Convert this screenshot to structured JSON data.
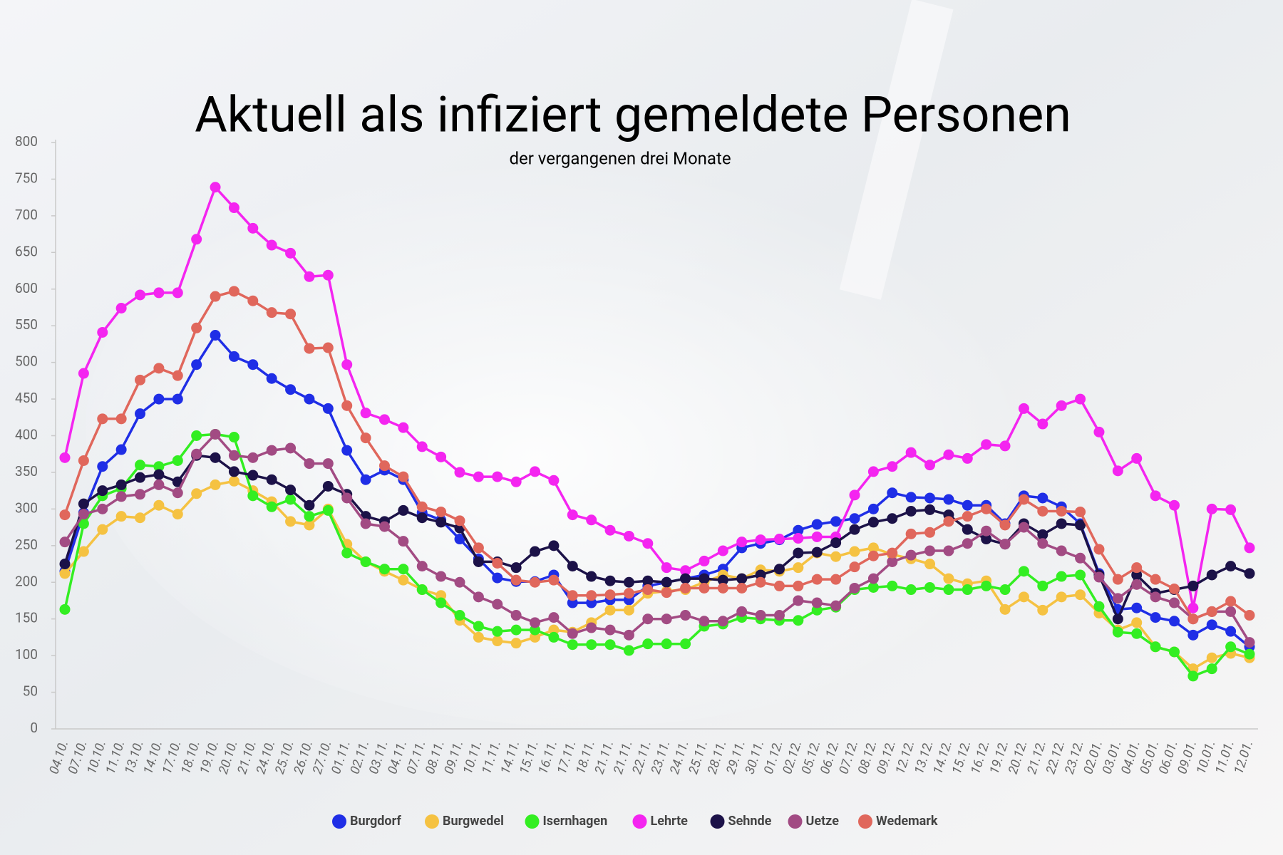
{
  "chart_data": {
    "type": "line",
    "title": "Aktuell als infiziert gemeldete Personen",
    "subtitle": "der vergangenen drei Monate",
    "categories": [
      "04.10.",
      "07.10.",
      "10.10.",
      "11.10.",
      "13.10.",
      "14.10.",
      "17.10.",
      "18.10.",
      "19.10.",
      "20.10.",
      "21.10.",
      "24.10.",
      "25.10.",
      "26.10.",
      "27.10.",
      "01.11.",
      "02.11.",
      "03.11.",
      "04.11.",
      "07.11.",
      "08.11.",
      "09.11.",
      "10.11.",
      "11.11.",
      "14.11.",
      "15.11.",
      "16.11.",
      "17.11.",
      "18.11.",
      "21.11.",
      "21.11.",
      "22.11.",
      "23.11.",
      "24.11.",
      "25.11.",
      "28.11.",
      "29.11.",
      "30.11.",
      "01.12.",
      "02.12.",
      "05.12.",
      "06.12.",
      "07.12.",
      "08.12.",
      "09.12.",
      "12.12.",
      "13.12.",
      "14.12.",
      "15.12.",
      "16.12.",
      "19.12.",
      "20.12.",
      "21.12.",
      "22.12.",
      "23.12.",
      "02.01.",
      "03.01.",
      "04.01.",
      "05.01.",
      "06.01.",
      "09.01.",
      "10.01.",
      "11.01.",
      "12.01."
    ],
    "series": [
      {
        "name": "Burgdorf",
        "color": "#1f2ee6",
        "values": [
          215,
          295,
          358,
          381,
          430,
          450,
          450,
          497,
          537,
          508,
          497,
          478,
          463,
          450,
          437,
          380,
          340,
          353,
          340,
          295,
          285,
          259,
          232,
          206,
          201,
          201,
          210,
          172,
          172,
          176,
          176,
          195,
          200,
          205,
          210,
          218,
          247,
          253,
          258,
          271,
          279,
          283,
          287,
          300,
          322,
          316,
          315,
          313,
          305,
          305,
          280,
          318,
          315,
          303,
          280,
          212,
          163,
          165,
          152,
          147,
          128,
          142,
          133,
          112
        ]
      },
      {
        "name": "Burgwedel",
        "color": "#f5c242",
        "values": [
          212,
          242,
          272,
          290,
          288,
          305,
          293,
          321,
          333,
          338,
          325,
          310,
          283,
          278,
          300,
          252,
          228,
          215,
          203,
          190,
          182,
          148,
          125,
          120,
          117,
          125,
          135,
          132,
          145,
          162,
          162,
          185,
          188,
          190,
          200,
          210,
          205,
          217,
          215,
          220,
          240,
          235,
          242,
          247,
          238,
          232,
          225,
          205,
          198,
          202,
          163,
          180,
          162,
          180,
          183,
          158,
          135,
          145,
          112,
          105,
          82,
          97,
          103,
          97
        ]
      },
      {
        "name": "Isernhagen",
        "color": "#33ee22",
        "values": [
          163,
          280,
          318,
          328,
          360,
          358,
          366,
          400,
          402,
          398,
          318,
          303,
          313,
          290,
          298,
          240,
          228,
          218,
          218,
          190,
          172,
          155,
          140,
          133,
          135,
          135,
          125,
          115,
          115,
          115,
          107,
          116,
          116,
          116,
          140,
          143,
          152,
          150,
          148,
          148,
          162,
          166,
          190,
          193,
          195,
          190,
          193,
          190,
          190,
          195,
          190,
          215,
          195,
          208,
          210,
          167,
          132,
          130,
          112,
          105,
          72,
          82,
          112,
          102
        ]
      },
      {
        "name": "Lehrte",
        "color": "#f425f0",
        "values": [
          370,
          485,
          541,
          574,
          592,
          595,
          595,
          668,
          739,
          711,
          683,
          660,
          649,
          617,
          619,
          497,
          431,
          422,
          411,
          385,
          371,
          350,
          344,
          344,
          337,
          351,
          339,
          292,
          285,
          271,
          263,
          253,
          220,
          216,
          229,
          243,
          255,
          258,
          259,
          260,
          262,
          262,
          319,
          351,
          358,
          377,
          360,
          374,
          369,
          388,
          386,
          437,
          416,
          441,
          450,
          405,
          352,
          369,
          318,
          305,
          165,
          300,
          299,
          247
        ]
      },
      {
        "name": "Sehnde",
        "color": "#1c1248",
        "values": [
          225,
          307,
          325,
          333,
          343,
          347,
          337,
          373,
          370,
          351,
          346,
          340,
          326,
          305,
          331,
          320,
          290,
          283,
          298,
          288,
          282,
          274,
          228,
          228,
          220,
          242,
          250,
          222,
          208,
          202,
          200,
          202,
          200,
          205,
          205,
          203,
          205,
          210,
          218,
          240,
          241,
          254,
          272,
          282,
          287,
          297,
          299,
          292,
          272,
          259,
          252,
          280,
          265,
          280,
          278,
          210,
          150,
          210,
          185,
          190,
          195,
          210,
          222,
          212
        ]
      },
      {
        "name": "Uetze",
        "color": "#a24b83",
        "values": [
          255,
          293,
          300,
          317,
          320,
          333,
          322,
          375,
          402,
          373,
          370,
          380,
          383,
          362,
          362,
          315,
          280,
          276,
          256,
          222,
          208,
          200,
          180,
          170,
          155,
          145,
          152,
          130,
          138,
          135,
          128,
          150,
          150,
          155,
          147,
          147,
          160,
          155,
          155,
          175,
          172,
          168,
          192,
          205,
          228,
          237,
          243,
          243,
          253,
          270,
          252,
          275,
          253,
          243,
          233,
          207,
          178,
          197,
          180,
          172,
          150,
          160,
          160,
          118
        ]
      },
      {
        "name": "Wedemark",
        "color": "#e0675c",
        "values": [
          292,
          366,
          423,
          423,
          476,
          492,
          482,
          547,
          590,
          597,
          584,
          568,
          566,
          519,
          520,
          441,
          397,
          359,
          344,
          303,
          296,
          284,
          247,
          226,
          203,
          200,
          203,
          182,
          182,
          183,
          185,
          190,
          186,
          192,
          192,
          192,
          192,
          200,
          195,
          195,
          204,
          204,
          221,
          236,
          240,
          266,
          268,
          283,
          290,
          300,
          278,
          313,
          297,
          297,
          296,
          245,
          204,
          220,
          204,
          191,
          150,
          160,
          174,
          155
        ]
      }
    ],
    "ylim": [
      0,
      800
    ],
    "yticks": [
      0,
      50,
      100,
      150,
      200,
      250,
      300,
      350,
      400,
      450,
      500,
      550,
      600,
      650,
      700,
      750,
      800
    ],
    "grid": false
  }
}
